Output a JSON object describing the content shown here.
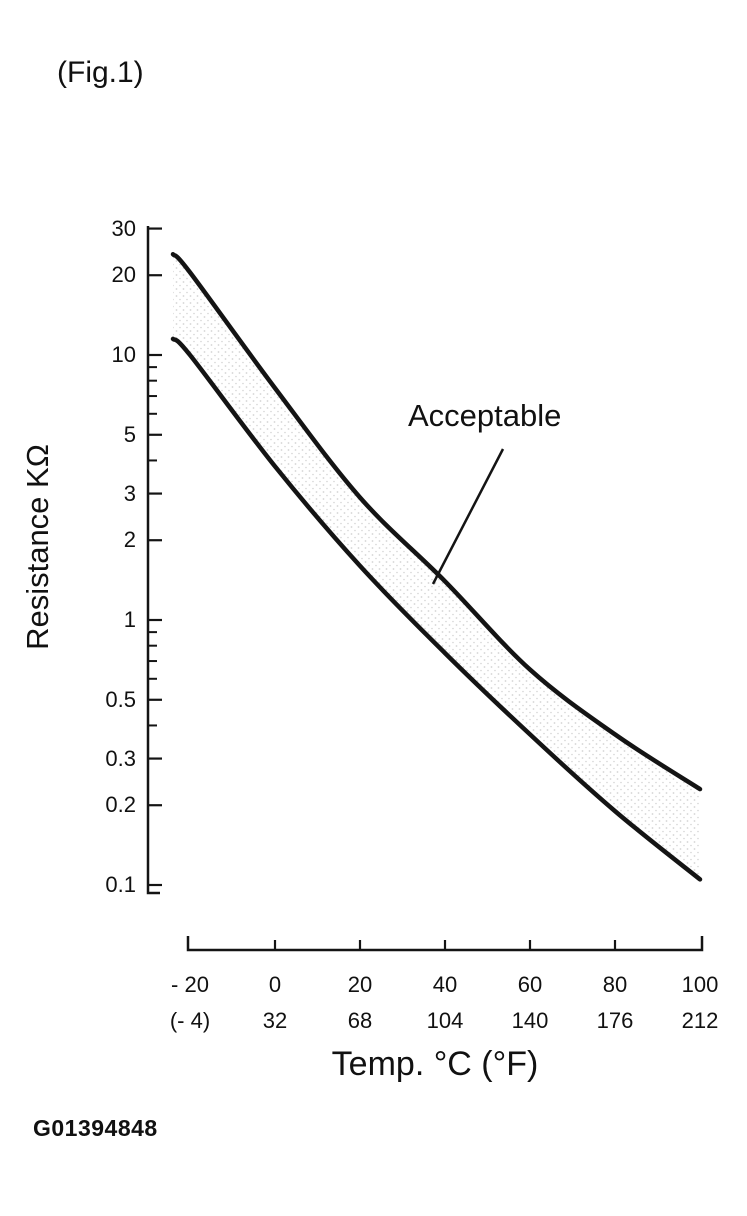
{
  "figure": {
    "title": "(Fig.1)",
    "code": "G01394848"
  },
  "chart_data": {
    "type": "line",
    "title": "(Fig.1)",
    "xlabel": "Temp. °C (°F)",
    "ylabel": "Resistance KΩ",
    "y_scale": "log",
    "ylim": [
      0.1,
      30
    ],
    "xlim_celsius": [
      -20,
      100
    ],
    "grid": false,
    "legend": "none",
    "y_tick_labels": [
      "30",
      "20",
      "10",
      "5",
      "3",
      "2",
      "1",
      "0.5",
      "0.3",
      "0.2",
      "0.1"
    ],
    "y_minor_ticks": [
      0.4,
      0.6,
      0.7,
      0.8,
      0.9,
      4,
      6,
      7,
      8,
      9
    ],
    "x_tick_values": [
      -20,
      0,
      20,
      40,
      60,
      80,
      100
    ],
    "x_tick_labels_c": [
      "- 20",
      "0",
      "20",
      "40",
      "60",
      "80",
      "100"
    ],
    "x_tick_labels_f": [
      "(- 4)",
      "32",
      "68",
      "104",
      "140",
      "176",
      "212"
    ],
    "x": [
      -24,
      -20,
      0,
      20,
      40,
      60,
      80,
      100
    ],
    "series": [
      {
        "name": "upper-acceptable-limit",
        "values": [
          24,
          20.5,
          7.5,
          2.9,
          1.4,
          0.65,
          0.37,
          0.23
        ]
      },
      {
        "name": "lower-acceptable-limit",
        "values": [
          11.5,
          10,
          3.8,
          1.6,
          0.75,
          0.37,
          0.19,
          0.105
        ]
      }
    ],
    "band_label": "Acceptable"
  },
  "colors": {
    "ink": "#141414",
    "paper": "#ffffff",
    "stipple": "#a8a8a8"
  }
}
